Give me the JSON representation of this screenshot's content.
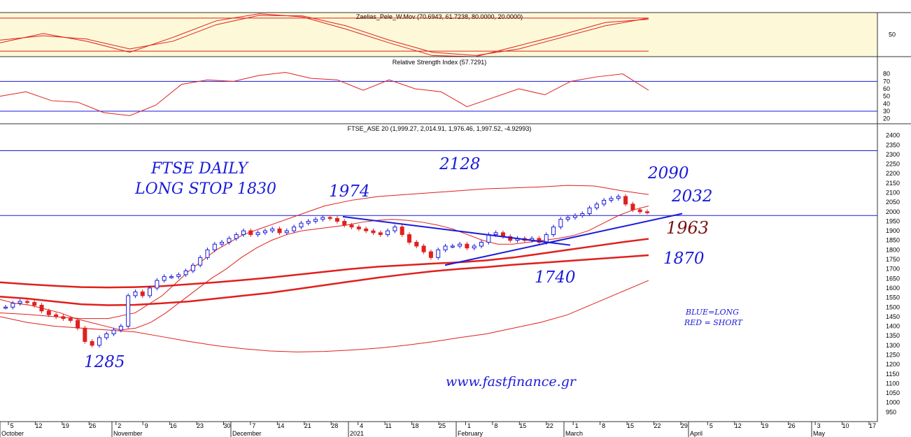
{
  "chart_data": [
    {
      "type": "line",
      "title": "Zaelias_Pele_W.Mov (70.6943, 61.7238, 80.0000, 20.0000)",
      "ytick_labels": [
        "50"
      ],
      "ylim": [
        10,
        90
      ],
      "levels": [
        80,
        20
      ],
      "x": [
        0,
        10,
        20,
        30,
        40,
        50,
        60,
        70,
        80,
        90,
        100,
        110,
        120,
        130,
        140,
        150
      ],
      "series": [
        {
          "values": [
            35,
            52,
            38,
            18,
            45,
            75,
            88,
            82,
            60,
            35,
            12,
            10,
            30,
            50,
            72,
            78
          ]
        },
        {
          "values": [
            40,
            48,
            42,
            24,
            38,
            68,
            85,
            84,
            66,
            40,
            18,
            12,
            24,
            45,
            66,
            80
          ]
        }
      ]
    },
    {
      "type": "line",
      "title": "Relative Strength Index (57.7291)",
      "ytick_labels": [
        "80",
        "70",
        "60",
        "50",
        "40",
        "30",
        "20"
      ],
      "ylim": [
        15,
        90
      ],
      "levels": [
        70,
        30
      ],
      "x": [
        0,
        6,
        12,
        18,
        24,
        30,
        36,
        42,
        48,
        54,
        60,
        66,
        72,
        78,
        84,
        90,
        96,
        102,
        108,
        114,
        120,
        126,
        132,
        138,
        144,
        150
      ],
      "series": [
        {
          "values": [
            50,
            56,
            44,
            42,
            28,
            24,
            38,
            66,
            72,
            70,
            78,
            82,
            74,
            72,
            58,
            72,
            60,
            56,
            36,
            48,
            60,
            52,
            70,
            76,
            80,
            58
          ]
        }
      ]
    },
    {
      "type": "line",
      "title": "FTSE_ASE 20 (1,999.27, 2,014.91, 1,976.46, 1,997.52, -4.92993)",
      "ytick_labels": [
        "2400",
        "2350",
        "2300",
        "2250",
        "2200",
        "2150",
        "2100",
        "2050",
        "2000",
        "1950",
        "1900",
        "1850",
        "1800",
        "1750",
        "1700",
        "1650",
        "1600",
        "1550",
        "1500",
        "1450",
        "1400",
        "1350",
        "1300",
        "1250",
        "1200",
        "1150",
        "1100",
        "1050",
        "1000",
        "950"
      ],
      "ylim": [
        900,
        2450
      ],
      "x_tick_labels": [
        "5",
        "12",
        "19",
        "26",
        "2",
        "9",
        "16",
        "23",
        "30",
        "7",
        "14",
        "21",
        "28",
        "4",
        "11",
        "18",
        "25",
        "1",
        "8",
        "15",
        "22",
        "1",
        "8",
        "15",
        "22",
        "29",
        "5",
        "12",
        "19",
        "26",
        "3",
        "10",
        "17"
      ],
      "month_labels": [
        "October",
        "November",
        "December",
        "2021",
        "February",
        "March",
        "April",
        "May"
      ],
      "horizontal_levels": [
        2320,
        1980
      ],
      "close": [
        1500,
        1520,
        1530,
        1525,
        1510,
        1480,
        1460,
        1450,
        1440,
        1430,
        1390,
        1320,
        1300,
        1340,
        1360,
        1380,
        1400,
        1560,
        1580,
        1560,
        1600,
        1640,
        1660,
        1660,
        1670,
        1690,
        1720,
        1760,
        1800,
        1830,
        1840,
        1860,
        1880,
        1900,
        1880,
        1890,
        1900,
        1910,
        1890,
        1900,
        1920,
        1940,
        1950,
        1960,
        1970,
        1965,
        1950,
        1930,
        1920,
        1910,
        1900,
        1890,
        1880,
        1900,
        1920,
        1880,
        1840,
        1820,
        1790,
        1760,
        1800,
        1820,
        1820,
        1830,
        1810,
        1820,
        1840,
        1880,
        1890,
        1870,
        1850,
        1860,
        1850,
        1860,
        1840,
        1880,
        1920,
        1960,
        1970,
        1980,
        1990,
        2020,
        2040,
        2060,
        2070,
        2080,
        2040,
        2010,
        2000,
        1998
      ],
      "series": [
        {
          "name": "ma-short",
          "values": [
            1540,
            1520,
            1510,
            1490,
            1470,
            1440,
            1420,
            1400,
            1380,
            1390,
            1420,
            1470,
            1530,
            1590,
            1650,
            1700,
            1760,
            1810,
            1850,
            1880,
            1900,
            1910,
            1920,
            1930,
            1945,
            1955,
            1960,
            1955,
            1945,
            1930,
            1910,
            1880,
            1850,
            1830,
            1830,
            1840,
            1850,
            1860,
            1875,
            1900,
            1940,
            1980,
            2010,
            2030
          ]
        },
        {
          "name": "ma-mid-upper",
          "values": [
            1630,
            1620,
            1612,
            1605,
            1603,
            1605,
            1610,
            1620,
            1630,
            1642,
            1655,
            1670,
            1685,
            1700,
            1712,
            1720,
            1728,
            1735,
            1745,
            1760,
            1780,
            1800,
            1820,
            1840,
            1858
          ]
        },
        {
          "name": "ma-mid-lower",
          "values": [
            1555,
            1545,
            1530,
            1515,
            1510,
            1512,
            1520,
            1530,
            1545,
            1560,
            1575,
            1595,
            1615,
            1635,
            1655,
            1672,
            1688,
            1700,
            1710,
            1722,
            1732,
            1742,
            1752,
            1762,
            1772
          ]
        },
        {
          "name": "band-upper",
          "values": [
            1470,
            1462,
            1450,
            1440,
            1440,
            1470,
            1560,
            1690,
            1800,
            1880,
            1930,
            1980,
            2030,
            2060,
            2080,
            2090,
            2100,
            2110,
            2120,
            2125,
            2130,
            2138,
            2135,
            2110,
            2090
          ]
        },
        {
          "name": "band-lower",
          "values": [
            1450,
            1420,
            1400,
            1390,
            1380,
            1370,
            1345,
            1320,
            1298,
            1282,
            1270,
            1265,
            1268,
            1275,
            1285,
            1300,
            1318,
            1340,
            1360,
            1390,
            1420,
            1460,
            1520,
            1580,
            1640
          ]
        }
      ],
      "trendlines": [
        {
          "from": [
            1974,
            0
          ],
          "to": [
            1825,
            1
          ]
        },
        {
          "from": [
            1720,
            0
          ],
          "to": [
            1990,
            1
          ]
        }
      ],
      "annotations": [
        "FTSE DAILY",
        "LONG STOP 1830",
        "1974",
        "2128",
        "2090",
        "2032",
        "1963",
        "1870",
        "1740",
        "1285",
        "BLUE=LONG",
        "RED = SHORT",
        "www.fastfinance.gr"
      ]
    }
  ],
  "colors": {
    "oscillator_bg": "#fdf9d8",
    "line_red": "#e0201c",
    "line_blue": "#1a1adc",
    "up_candle": "#1a1adc",
    "down_candle": "#e0201c"
  }
}
